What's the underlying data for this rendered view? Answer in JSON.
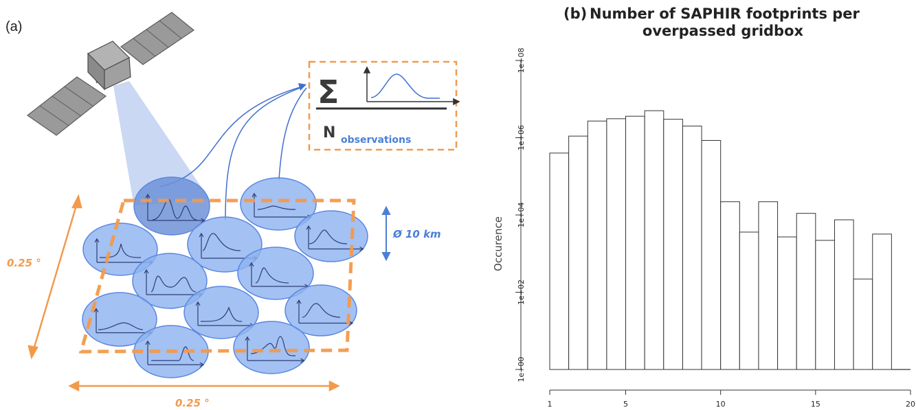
{
  "diagram": {
    "panel_label": "(a)",
    "size_label_x": "0.25 °",
    "size_label_y": "0.25 °",
    "footprint_label": "Ø 10 km",
    "formula_symbol": "Σ",
    "formula_N": "N",
    "formula_subscript": "observations",
    "colors": {
      "orange": "#f39a4a",
      "blue": "#4a7fd6",
      "ellipse_fill": "#8fb3ef",
      "satellite_gray": "#9a9a9a"
    }
  },
  "chart_data": {
    "type": "bar",
    "panel_label": "(b)",
    "title": [
      "Number of SAPHIR footprints per",
      "overpassed gridbox"
    ],
    "ylabel": "Occurence",
    "xlabel": "",
    "yscale": "log",
    "x_ticks": [
      "1",
      "5",
      "10",
      "15",
      "20"
    ],
    "y_ticks": [
      "1e+00",
      "1e+02",
      "1e+04",
      "1e+06",
      "1e+08"
    ],
    "xlim": [
      1,
      20
    ],
    "ylim": [
      1,
      100000000
    ],
    "categories": [
      1,
      2,
      3,
      4,
      5,
      6,
      7,
      8,
      9,
      10,
      11,
      12,
      13,
      14,
      15,
      16,
      17,
      18,
      19
    ],
    "values": [
      400000,
      1100000,
      2700000,
      3100000,
      3600000,
      5000000,
      3000000,
      2000000,
      850000,
      22000,
      3600,
      22000,
      2700,
      11000,
      2200,
      7500,
      220,
      3200,
      1
    ]
  }
}
